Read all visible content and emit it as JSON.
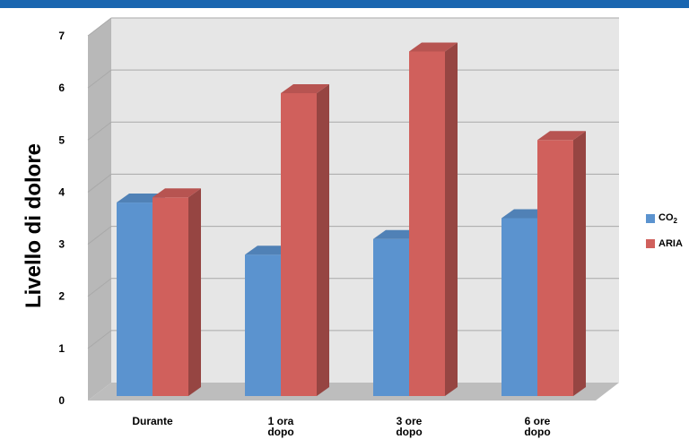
{
  "colors": {
    "top_bar": "#1a66b0",
    "wall": "#e6e6e6",
    "side_wall": "#b8b8b8",
    "floor": "#bdbdbd",
    "grid": "#a9a9a9",
    "co2": "#5b93cf",
    "aria": "#d0605c"
  },
  "chart_data": {
    "type": "bar",
    "ylabel": "Livello di dolore",
    "xlabel": "",
    "ylim": [
      0,
      7
    ],
    "yticks": [
      "0",
      "1",
      "2",
      "3",
      "4",
      "5",
      "6",
      "7"
    ],
    "grid": true,
    "legend_position": "right",
    "categories": [
      [
        "Durante"
      ],
      [
        "1 ora",
        "dopo"
      ],
      [
        "3 ore",
        "dopo"
      ],
      [
        "6 ore",
        "dopo"
      ]
    ],
    "series": [
      {
        "name": "CO",
        "subscript": "2",
        "values": [
          3.8,
          2.8,
          3.1,
          3.5
        ]
      },
      {
        "name": "ARIA",
        "values": [
          3.9,
          5.9,
          6.7,
          5.0
        ]
      }
    ]
  }
}
